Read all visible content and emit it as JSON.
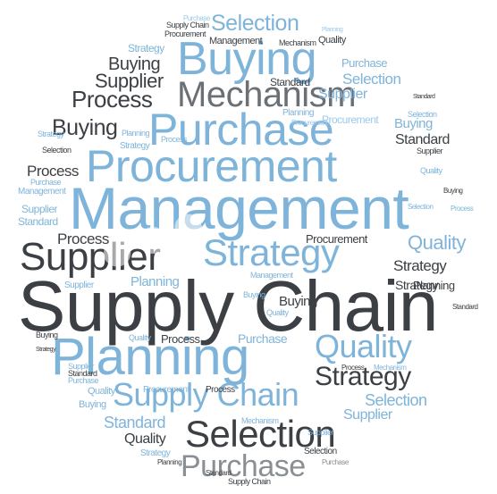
{
  "cloud": {
    "large": {
      "supply_chain": "Supply Chain",
      "management": "Management",
      "procurement": "Procurement",
      "purchase": "Purchase",
      "mechanism": "Mechanism",
      "buying": "Buying",
      "planning": "Planning",
      "supplier": "Supplier",
      "strategy": "Strategy",
      "selection": "Selection",
      "quality": "Quality",
      "supply_chain_2": "Supply Chain",
      "purchase_2": "Purchase",
      "strategy_2": "Strategy"
    },
    "medium": {
      "selection_top": "Selection",
      "buying_left": "Buying",
      "supplier_left": "Supplier",
      "process_left": "Process",
      "buying_left2": "Buying",
      "process_left2": "Process",
      "process_left3": "Process",
      "standard_right": "Standard",
      "selection_right": "Selection",
      "quality_right": "Quality",
      "strategy_right": "Strategy",
      "selection_low": "Selection",
      "supplier_low": "Supplier",
      "standard_low": "Standard",
      "quality_low": "Quality",
      "buying_mid": "Buying",
      "purchase_top": "Purchase",
      "buying_right": "Buying",
      "standard_mid": "Standard",
      "supplier_right": "Supplier",
      "planning_mid": "Planning",
      "procurement_mid": "Procurement",
      "process_mid": "Process",
      "strategy_mid": "Strategy",
      "management_top": "Management",
      "quality_top": "Quality",
      "purchase_mid": "Purchase",
      "planning_right": "Planning"
    },
    "small": [
      "Purchase",
      "Supply Chain",
      "Procurement",
      "Planning",
      "Strategy",
      "Mechanism",
      "Standard",
      "Selection",
      "Supplier",
      "Quality",
      "Buying",
      "Process",
      "Management",
      "Purchase",
      "Strategy",
      "Selection",
      "Supplier",
      "Standard",
      "Planning",
      "Process",
      "Procurement",
      "Mechanism",
      "Buying",
      "Quality",
      "Strategy",
      "Supplier",
      "Standard",
      "Purchase",
      "Selection",
      "Planning",
      "Procurement",
      "Process",
      "Buying",
      "Quality",
      "Mechanism",
      "Strategy",
      "Standard",
      "Supplier",
      "Purchase",
      "Selection",
      "Planning",
      "Supply Chain",
      "Management",
      "Quality",
      "Buying",
      "Process",
      "Procurement",
      "Strategy",
      "Supplier",
      "Standard"
    ]
  }
}
